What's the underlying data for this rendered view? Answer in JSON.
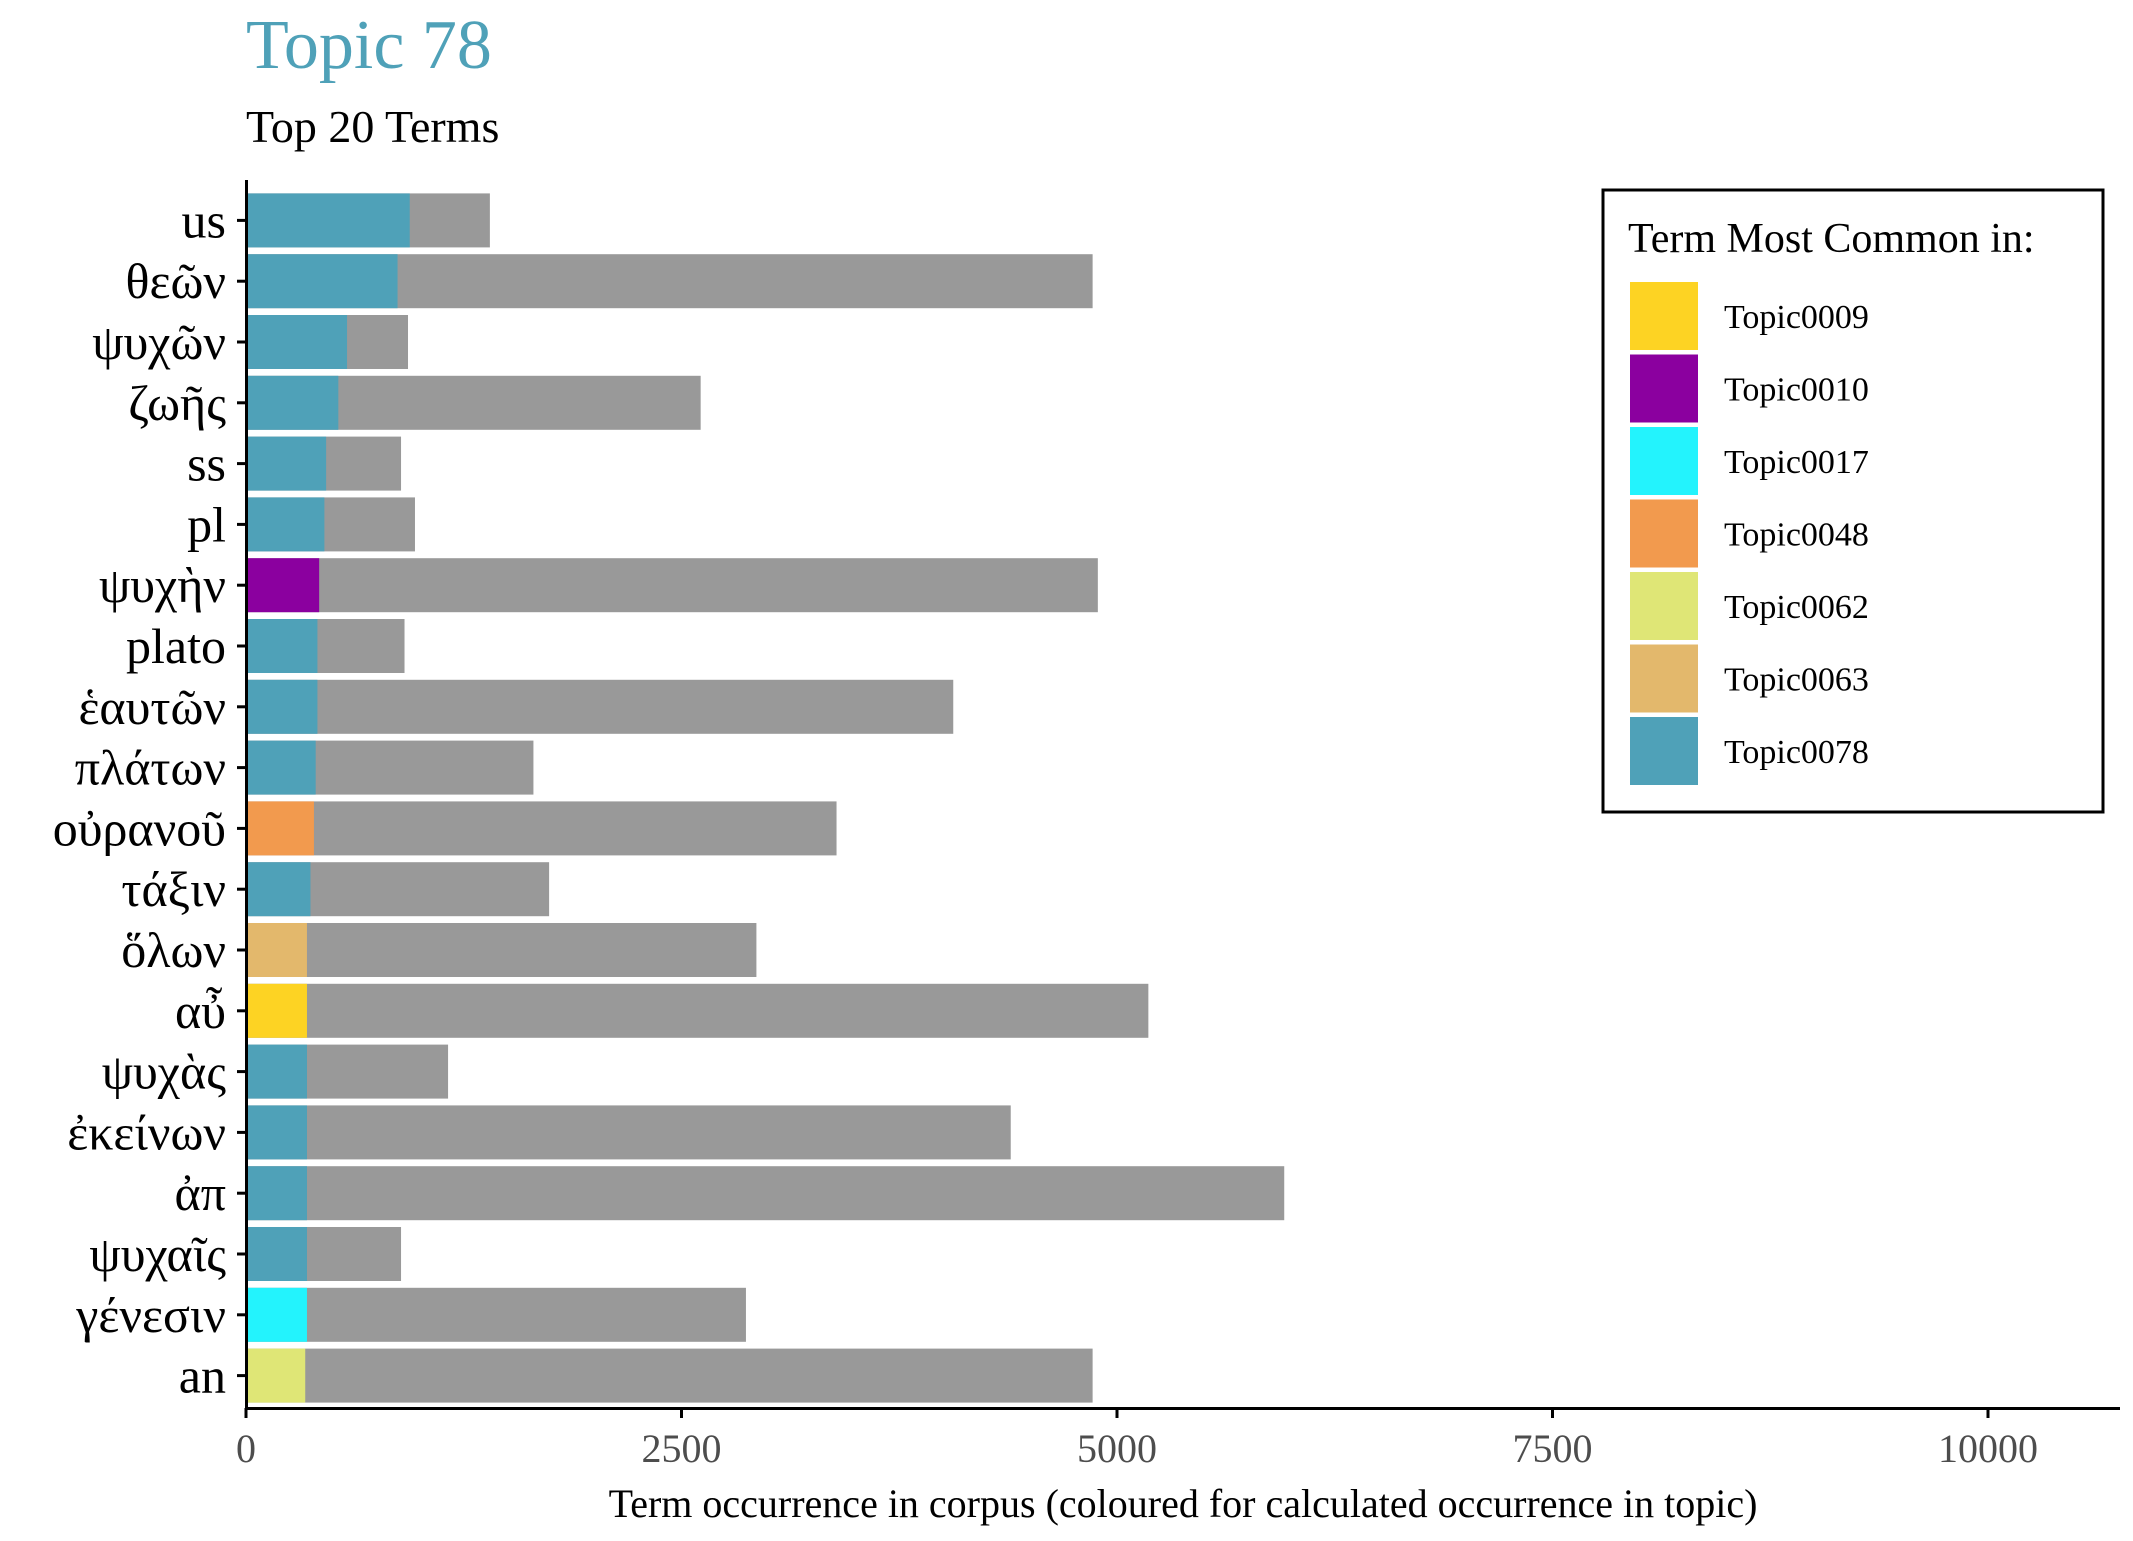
{
  "chart_data": {
    "type": "bar",
    "orientation": "horizontal",
    "stacked_overlay": true,
    "title": "Topic 78",
    "subtitle": "Top 20 Terms",
    "xlabel": "Term occurrence in corpus (coloured for calculated occurrence in topic)",
    "ylabel": "",
    "xlim": [
      0,
      10700
    ],
    "xticks": [
      "0",
      "2500",
      "5000",
      "7500",
      "10000"
    ],
    "xtick_values": [
      0,
      2500,
      5000,
      7500,
      10000
    ],
    "grid": false,
    "legend_position": "top-right",
    "legend_title": "Term Most Common in:",
    "legend": [
      {
        "label": "Topic0009",
        "color": "#fdd323"
      },
      {
        "label": "Topic0010",
        "color": "#8b009f"
      },
      {
        "label": "Topic0017",
        "color": "#23f3fd"
      },
      {
        "label": "Topic0048",
        "color": "#f29a4e"
      },
      {
        "label": "Topic0062",
        "color": "#dfe676"
      },
      {
        "label": "Topic0063",
        "color": "#e3b86c"
      },
      {
        "label": "Topic0078",
        "color": "#4fa1b8"
      }
    ],
    "corpus_color": "#999999",
    "categories": [
      "us",
      "θεῶν",
      "ψυχῶν",
      "ζωῆς",
      "ss",
      "pl",
      "ψυχὴν",
      "plato",
      "ἑαυτῶν",
      "πλάτων",
      "οὐρανοῦ",
      "τάξιν",
      "ὅλων",
      "αὖ",
      "ψυχὰς",
      "ἐκείνων",
      "ἀπ",
      "ψυχαῖς",
      "γένεσιν",
      "an"
    ],
    "series": [
      {
        "name": "Term occurrence in corpus",
        "values": [
          1400,
          4860,
          930,
          2610,
          890,
          970,
          4890,
          910,
          4060,
          1650,
          3390,
          1740,
          2930,
          5180,
          1160,
          4390,
          5960,
          890,
          2870,
          4860
        ]
      },
      {
        "name": "Calculated occurrence in topic",
        "values": [
          940,
          870,
          580,
          530,
          460,
          450,
          420,
          410,
          410,
          400,
          390,
          370,
          350,
          350,
          350,
          350,
          350,
          350,
          350,
          340
        ]
      }
    ],
    "topic_of_term": [
      "Topic0078",
      "Topic0078",
      "Topic0078",
      "Topic0078",
      "Topic0078",
      "Topic0078",
      "Topic0010",
      "Topic0078",
      "Topic0078",
      "Topic0078",
      "Topic0048",
      "Topic0078",
      "Topic0063",
      "Topic0009",
      "Topic0078",
      "Topic0078",
      "Topic0078",
      "Topic0078",
      "Topic0017",
      "Topic0062"
    ]
  }
}
